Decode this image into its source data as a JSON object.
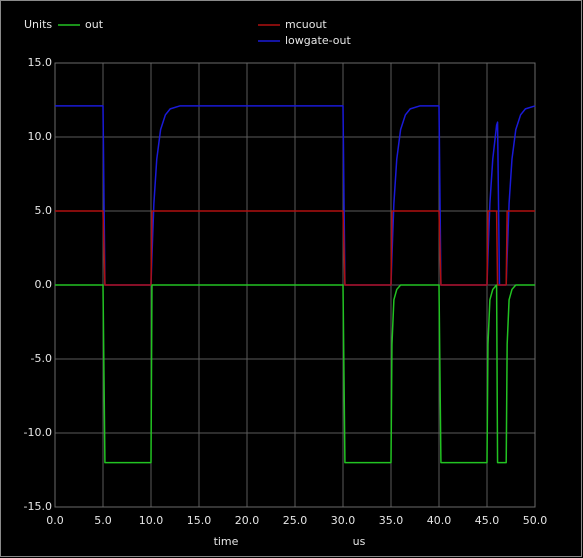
{
  "chart_data": {
    "type": "line",
    "ylabel": "Units",
    "xlabel": "time",
    "xunit": "us",
    "grid": true,
    "xlim": [
      0,
      50
    ],
    "ylim": [
      -15,
      15
    ],
    "xticks": [
      {
        "value": 0,
        "label": "0.0"
      },
      {
        "value": 5,
        "label": "5.0"
      },
      {
        "value": 10,
        "label": "10.0"
      },
      {
        "value": 15,
        "label": "15.0"
      },
      {
        "value": 20,
        "label": "20.0"
      },
      {
        "value": 25,
        "label": "25.0"
      },
      {
        "value": 30,
        "label": "30.0"
      },
      {
        "value": 35,
        "label": "35.0"
      },
      {
        "value": 40,
        "label": "40.0"
      },
      {
        "value": 45,
        "label": "45.0"
      },
      {
        "value": 50,
        "label": "50.0"
      }
    ],
    "yticks": [
      {
        "value": -15,
        "label": "-15.0"
      },
      {
        "value": -10,
        "label": "-10.0"
      },
      {
        "value": -5,
        "label": "-5.0"
      },
      {
        "value": 0,
        "label": "0.0"
      },
      {
        "value": 5,
        "label": "5.0"
      },
      {
        "value": 10,
        "label": "10.0"
      },
      {
        "value": 15,
        "label": "15.0"
      }
    ],
    "x": [
      0,
      5,
      5.2,
      10,
      10.1,
      10.3,
      10.6,
      11,
      11.5,
      12,
      13,
      30,
      30.2,
      35,
      35.1,
      35.3,
      35.6,
      36,
      36.5,
      37,
      38,
      40,
      40.2,
      45,
      45.1,
      45.3,
      45.6,
      46,
      46.1,
      46.3,
      47,
      47.1,
      47.3,
      47.6,
      48,
      48.5,
      49,
      50
    ],
    "series": [
      {
        "name": "out",
        "color": "#22c322",
        "values": [
          0,
          0,
          -12,
          -12,
          0,
          0,
          0,
          0,
          0,
          0,
          0,
          0,
          -12,
          -12,
          -4,
          -1,
          -0.3,
          0,
          0,
          0,
          0,
          0,
          -12,
          -12,
          -4,
          -1,
          -0.3,
          0,
          -12,
          -12,
          -12,
          -4,
          -1,
          -0.3,
          0,
          0,
          0,
          0
        ]
      },
      {
        "name": "mcuout",
        "color": "#b01010",
        "values": [
          5,
          5,
          0,
          0,
          5,
          5,
          5,
          5,
          5,
          5,
          5,
          5,
          0,
          0,
          5,
          5,
          5,
          5,
          5,
          5,
          5,
          5,
          0,
          0,
          5,
          5,
          5,
          5,
          0,
          0,
          0,
          5,
          5,
          5,
          5,
          5,
          5,
          5
        ]
      },
      {
        "name": "lowgate-out",
        "color": "#1a1ad8",
        "values": [
          12.1,
          12.1,
          0,
          0,
          2,
          5.5,
          8.5,
          10.5,
          11.5,
          11.9,
          12.1,
          12.1,
          0,
          0,
          2,
          5.5,
          8.5,
          10.5,
          11.5,
          11.9,
          12.1,
          12.1,
          0,
          0,
          2,
          5.5,
          8.5,
          10.8,
          11,
          0,
          0,
          2,
          5.5,
          8.5,
          10.5,
          11.5,
          11.9,
          12.1
        ]
      }
    ]
  }
}
